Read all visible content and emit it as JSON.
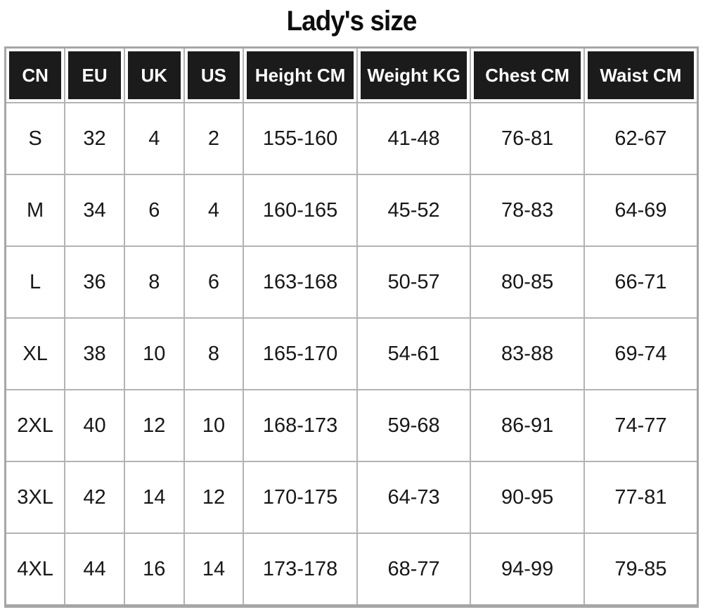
{
  "title": "Lady's size",
  "chart_data": {
    "type": "table",
    "title": "Lady's size",
    "columns": [
      "CN",
      "EU",
      "UK",
      "US",
      "Height CM",
      "Weight KG",
      "Chest CM",
      "Waist CM"
    ],
    "rows": [
      [
        "S",
        "32",
        "4",
        "2",
        "155-160",
        "41-48",
        "76-81",
        "62-67"
      ],
      [
        "M",
        "34",
        "6",
        "4",
        "160-165",
        "45-52",
        "78-83",
        "64-69"
      ],
      [
        "L",
        "36",
        "8",
        "6",
        "163-168",
        "50-57",
        "80-85",
        "66-71"
      ],
      [
        "XL",
        "38",
        "10",
        "8",
        "165-170",
        "54-61",
        "83-88",
        "69-74"
      ],
      [
        "2XL",
        "40",
        "12",
        "10",
        "168-173",
        "59-68",
        "86-91",
        "74-77"
      ],
      [
        "3XL",
        "42",
        "14",
        "12",
        "170-175",
        "64-73",
        "90-95",
        "77-81"
      ],
      [
        "4XL",
        "44",
        "16",
        "14",
        "173-178",
        "68-77",
        "94-99",
        "79-85"
      ]
    ],
    "layout": {
      "header_position": "top",
      "grid": true,
      "narrow_columns": 4,
      "wide_columns": 4
    }
  },
  "colors": {
    "header_bg": "#1b1b1b",
    "header_text": "#ffffff",
    "body_bg": "#ffffff",
    "body_text": "#171717",
    "grid_line": "#b3b3b3",
    "page_bg": "#ffffff"
  }
}
